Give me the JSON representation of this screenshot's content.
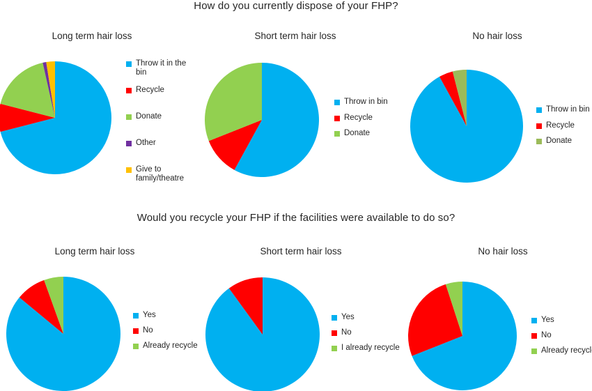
{
  "q1_title": "How do you currently dispose of your FHP?",
  "q2_title": "Would you recycle your FHP if the facilities were available to do so?",
  "colors": {
    "blue": "#00B0F0",
    "red": "#FF0000",
    "green": "#92D050",
    "purple": "#7030A0",
    "yellow": "#FFC000",
    "olive": "#9BBB59"
  },
  "chart_data": [
    {
      "type": "pie",
      "title": "Long term hair loss",
      "labels": [
        "Throw it in the bin",
        "Recycle",
        "Donate",
        "Other",
        "Give to family/theatre"
      ],
      "values": [
        71,
        8,
        17.5,
        1,
        2.5
      ],
      "colors": [
        "#00B0F0",
        "#FF0000",
        "#92D050",
        "#7030A0",
        "#FFC000"
      ]
    },
    {
      "type": "pie",
      "title": "Short term hair loss",
      "labels": [
        "Throw in bin",
        "Recycle",
        "Donate"
      ],
      "values": [
        58,
        11,
        31
      ],
      "colors": [
        "#00B0F0",
        "#FF0000",
        "#92D050"
      ]
    },
    {
      "type": "pie",
      "title": "No hair loss",
      "labels": [
        "Throw in bin",
        "Recycle",
        "Donate"
      ],
      "values": [
        92,
        4,
        4
      ],
      "colors": [
        "#00B0F0",
        "#FF0000",
        "#9BBB59"
      ]
    },
    {
      "type": "pie",
      "title": "Long term hair loss",
      "labels": [
        "Yes",
        "No",
        "Already recycle"
      ],
      "values": [
        86,
        8.5,
        5.5
      ],
      "colors": [
        "#00B0F0",
        "#FF0000",
        "#92D050"
      ]
    },
    {
      "type": "pie",
      "title": "Short term hair loss",
      "labels": [
        "Yes",
        "No",
        "I already recycle"
      ],
      "values": [
        90,
        10,
        0
      ],
      "colors": [
        "#00B0F0",
        "#FF0000",
        "#92D050"
      ]
    },
    {
      "type": "pie",
      "title": "No hair loss",
      "labels": [
        "Yes",
        "No",
        "Already recycle"
      ],
      "values": [
        69,
        26,
        5
      ],
      "colors": [
        "#00B0F0",
        "#FF0000",
        "#92D050"
      ]
    }
  ]
}
